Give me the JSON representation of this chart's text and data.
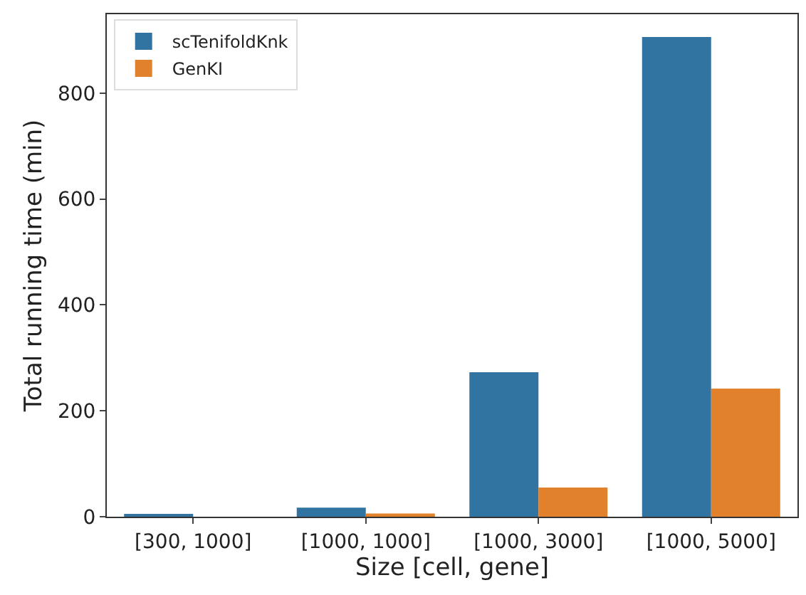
{
  "chart_data": {
    "type": "bar",
    "xlabel": "Size [cell, gene]",
    "ylabel": "Total running time (min)",
    "categories": [
      "[300, 1000]",
      "[1000, 1000]",
      "[1000, 3000]",
      "[1000, 5000]"
    ],
    "series": [
      {
        "name": "scTenifoldKnk",
        "color": "#3274a1",
        "values": [
          3,
          17,
          273,
          906
        ]
      },
      {
        "name": "GenKI",
        "color": "#e1812c",
        "values": [
          0,
          6,
          55,
          242
        ]
      }
    ],
    "ylim": [
      0,
      949
    ],
    "yticks": [
      0,
      200,
      400,
      600,
      800
    ],
    "legend": "top left"
  }
}
